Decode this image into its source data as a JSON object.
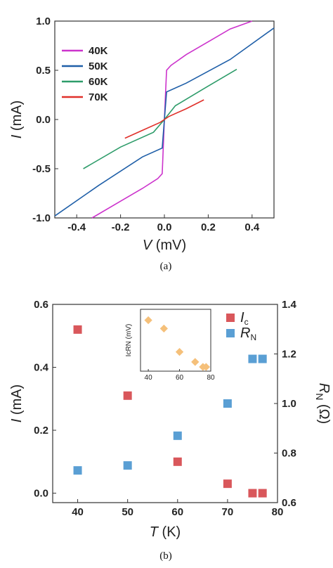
{
  "chart_data": [
    {
      "type": "line",
      "xlabel_var": "V",
      "xlabel_unit": "(mV)",
      "ylabel_var": "I",
      "ylabel_unit": "(mA)",
      "xlim": [
        -0.5,
        0.5
      ],
      "ylim": [
        -1.0,
        1.0
      ],
      "xticks": [
        "-0.4",
        "-0.2",
        "0.0",
        "0.2",
        "0.4"
      ],
      "yticks": [
        "-1.0",
        "-0.5",
        "0.0",
        "0.5",
        "1.0"
      ],
      "legend_position": "top-left",
      "caption": "(a)",
      "series": [
        {
          "name": "40K",
          "color": "#cc33cc",
          "x": [
            -0.33,
            -0.2,
            -0.1,
            -0.03,
            -0.01,
            0.0,
            0.01,
            0.03,
            0.1,
            0.2,
            0.3,
            0.4
          ],
          "y": [
            -1.0,
            -0.83,
            -0.7,
            -0.6,
            -0.55,
            0.0,
            0.5,
            0.55,
            0.66,
            0.79,
            0.92,
            1.05
          ]
        },
        {
          "name": "50K",
          "color": "#1f5fa8",
          "x": [
            -0.5,
            -0.3,
            -0.1,
            -0.01,
            0.0,
            0.01,
            0.1,
            0.3,
            0.5
          ],
          "y": [
            -0.98,
            -0.67,
            -0.38,
            -0.29,
            0.0,
            0.28,
            0.37,
            0.61,
            0.93
          ]
        },
        {
          "name": "60K",
          "color": "#2e9c6a",
          "x": [
            -0.37,
            -0.2,
            -0.05,
            0.0,
            0.05,
            0.2,
            0.33
          ],
          "y": [
            -0.5,
            -0.28,
            -0.13,
            0.0,
            0.14,
            0.34,
            0.51
          ]
        },
        {
          "name": "70K",
          "color": "#e0302a",
          "x": [
            -0.18,
            -0.1,
            -0.02,
            0.0,
            0.02,
            0.1,
            0.18
          ],
          "y": [
            -0.19,
            -0.11,
            -0.03,
            0.0,
            0.03,
            0.11,
            0.2
          ]
        }
      ]
    },
    {
      "type": "scatter",
      "xlabel_var": "T",
      "xlabel_unit": "(K)",
      "ylabel_left_var": "I",
      "ylabel_left_unit": "(mA)",
      "ylabel_right_var": "R",
      "ylabel_right_sub": "N",
      "ylabel_right_unit": "(Ω)",
      "xlim": [
        35,
        80
      ],
      "ylim_left": [
        -0.03,
        0.6
      ],
      "ylim_right": [
        0.6,
        1.4
      ],
      "xticks": [
        "40",
        "50",
        "60",
        "70",
        "80"
      ],
      "yticks_left": [
        "0.0",
        "0.2",
        "0.4",
        "0.6"
      ],
      "yticks_right": [
        "0.6",
        "0.8",
        "1.0",
        "1.2",
        "1.4"
      ],
      "legend_position": "top-right",
      "caption": "(b)",
      "series": [
        {
          "name": "Ic",
          "name_var": "I",
          "name_sub": "c",
          "axis": "left",
          "color": "#d9575b",
          "x": [
            40,
            50,
            60,
            70,
            75,
            77
          ],
          "y": [
            0.52,
            0.31,
            0.1,
            0.03,
            0.0,
            0.0
          ]
        },
        {
          "name": "RN",
          "name_var": "R",
          "name_sub": "N",
          "axis": "right",
          "color": "#5a9fd4",
          "x": [
            40,
            50,
            60,
            70,
            75,
            77
          ],
          "y": [
            0.73,
            0.75,
            0.87,
            1.0,
            1.18,
            1.18
          ]
        }
      ],
      "inset": {
        "type": "scatter",
        "ylabel": "IcRN (mV)",
        "xticks": [
          "40",
          "60",
          "80"
        ],
        "xlim": [
          35,
          80
        ],
        "ylim": [
          0,
          0.32
        ],
        "color": "#f5c07a",
        "x": [
          40,
          50,
          60,
          70,
          75,
          77
        ],
        "y": [
          0.28,
          0.23,
          0.09,
          0.03,
          0.0,
          0.0
        ]
      }
    }
  ]
}
